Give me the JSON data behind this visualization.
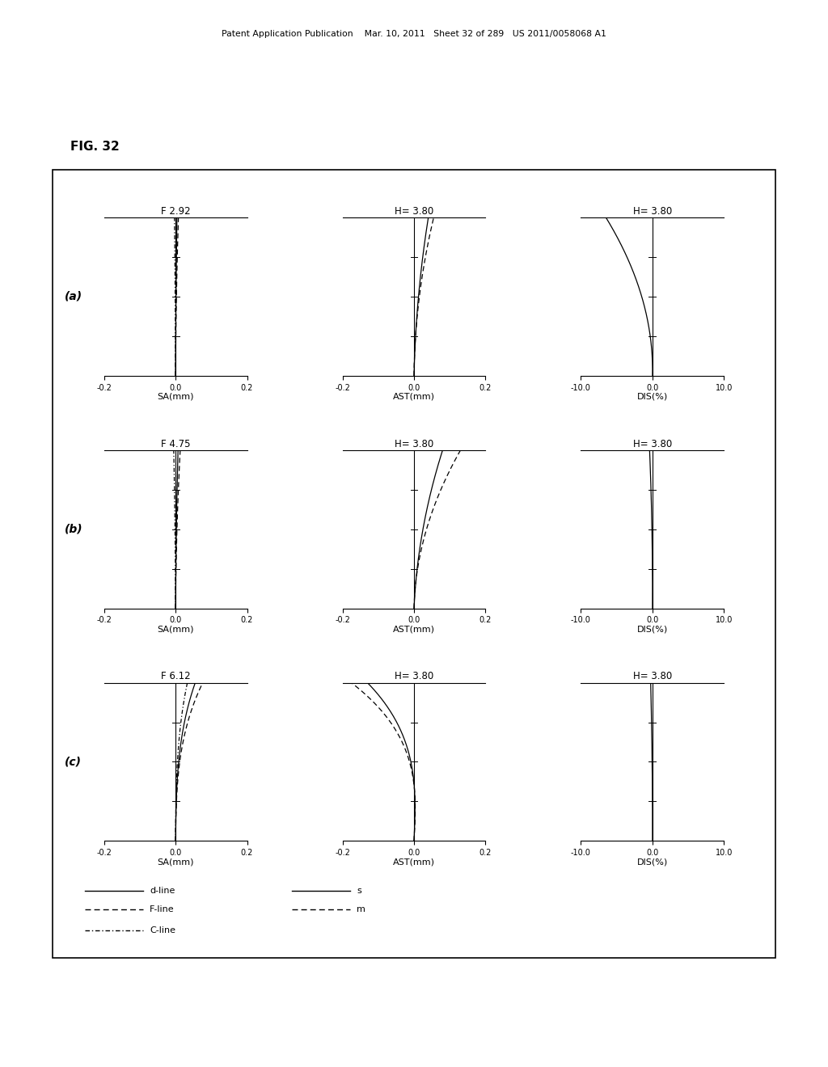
{
  "fig_label": "FIG. 32",
  "header_text": "Patent Application Publication    Mar. 10, 2011   Sheet 32 of 289   US 2011/0058068 A1",
  "rows": [
    "(a)",
    "(b)",
    "(c)"
  ],
  "row_titles_sa": [
    "F 2.92",
    "F 4.75",
    "F 6.12"
  ],
  "row_titles_ast": [
    "H= 3.80",
    "H= 3.80",
    "H= 3.80"
  ],
  "row_titles_dis": [
    "H= 3.80",
    "H= 3.80",
    "H= 3.80"
  ],
  "sa_xlim": [
    -0.2,
    0.2
  ],
  "ast_xlim": [
    -0.2,
    0.2
  ],
  "dis_xlim": [
    -10.0,
    10.0
  ],
  "sa_xticks": [
    -0.2,
    0.0,
    0.2
  ],
  "ast_xticks": [
    -0.2,
    0.0,
    0.2
  ],
  "dis_xticks": [
    -10.0,
    0.0,
    10.0
  ],
  "sa_xlabel": "SA(mm)",
  "ast_xlabel": "AST(mm)",
  "dis_xlabel": "DIS(%)"
}
